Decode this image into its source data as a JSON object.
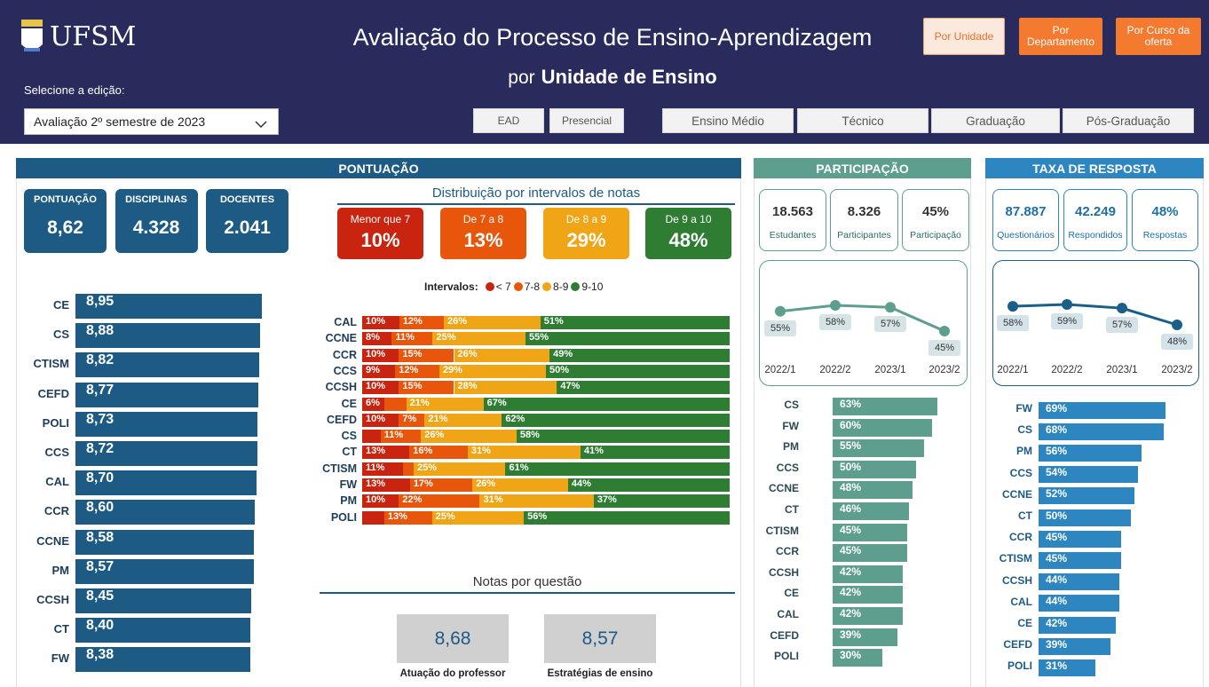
{
  "header": {
    "logo": "UFSM",
    "title": "Avaliação do Processo de Ensino-Aprendizagem",
    "subtitle_prefix": "por",
    "subtitle_main": "Unidade de Ensino",
    "edition_label": "Selecione a edição:",
    "edition_value": "Avaliação 2º semestre de 2023",
    "nav_buttons": [
      "Por Unidade",
      "Por Departamento",
      "Por Curso da oferta"
    ],
    "filters": [
      "EAD",
      "Presencial",
      "Ensino Médio",
      "Técnico",
      "Graduação",
      "Pós-Graduação"
    ]
  },
  "pontuacao": {
    "title": "PONTUAÇÃO",
    "kpis": [
      {
        "label": "PONTUAÇÃO",
        "value": "8,62"
      },
      {
        "label": "DISCIPLINAS",
        "value": "4.328"
      },
      {
        "label": "DOCENTES",
        "value": "2.041"
      }
    ],
    "distribution": {
      "title": "Distribuição por intervalos de notas",
      "buckets": [
        {
          "label": "Menor que 7",
          "value": "10%"
        },
        {
          "label": "De 7 a 8",
          "value": "13%"
        },
        {
          "label": "De 8 a 9",
          "value": "29%"
        },
        {
          "label": "De 9 a 10",
          "value": "48%"
        }
      ]
    },
    "questions": {
      "title": "Notas por questão",
      "items": [
        {
          "value": "8,68",
          "label": "Atuação do professor"
        },
        {
          "value": "8,57",
          "label": "Estratégias de ensino"
        }
      ]
    }
  },
  "participacao": {
    "title": "PARTICIPAÇÃO",
    "kpis": [
      {
        "value": "18.563",
        "label": "Estudantes"
      },
      {
        "value": "8.326",
        "label": "Participantes"
      },
      {
        "value": "45%",
        "label": "Participação"
      }
    ]
  },
  "taxa": {
    "title": "TAXA DE RESPOSTA",
    "kpis": [
      {
        "value": "87.887",
        "label": "Questionários"
      },
      {
        "value": "42.249",
        "label": "Respondidos"
      },
      {
        "value": "48%",
        "label": "Respostas"
      }
    ]
  },
  "chart_data": [
    {
      "type": "hbar",
      "color": "#1d5b84",
      "categories": [
        "CE",
        "CS",
        "CTISM",
        "CEFD",
        "POLI",
        "CCS",
        "CAL",
        "CCR",
        "CCNE",
        "PM",
        "CCSH",
        "CT",
        "FW"
      ],
      "values": [
        8.95,
        8.88,
        8.82,
        8.77,
        8.73,
        8.72,
        8.7,
        8.6,
        8.58,
        8.57,
        8.45,
        8.4,
        8.38
      ],
      "value_labels": [
        "8,95",
        "8,88",
        "8,82",
        "8,77",
        "8,73",
        "8,72",
        "8,70",
        "8,60",
        "8,58",
        "8,57",
        "8,45",
        "8,40",
        "8,38"
      ]
    },
    {
      "type": "stacked_hbar",
      "legend_title": "Intervalos:",
      "categories": [
        "CAL",
        "CCNE",
        "CCR",
        "CCS",
        "CCSH",
        "CE",
        "CEFD",
        "CS",
        "CT",
        "CTISM",
        "FW",
        "PM",
        "POLI"
      ],
      "series": [
        {
          "name": "< 7",
          "color": "#c8240f",
          "values": [
            10,
            8,
            10,
            9,
            10,
            6,
            10,
            5,
            13,
            11,
            13,
            10,
            6
          ],
          "value_labels": [
            "10%",
            "8%",
            "10%",
            "9%",
            "10%",
            "6%",
            "10%",
            null,
            "13%",
            "11%",
            "13%",
            "10%",
            null
          ]
        },
        {
          "name": "7-8",
          "color": "#e8560c",
          "values": [
            12,
            11,
            15,
            12,
            15,
            6,
            7,
            11,
            16,
            3,
            17,
            22,
            13
          ],
          "value_labels": [
            "12%",
            "11%",
            "15%",
            "12%",
            "15%",
            null,
            "7%",
            "11%",
            "16%",
            null,
            "17%",
            "22%",
            "13%"
          ]
        },
        {
          "name": "8-9",
          "color": "#f0a516",
          "values": [
            26,
            25,
            26,
            29,
            28,
            21,
            21,
            26,
            31,
            25,
            26,
            31,
            25
          ],
          "value_labels": [
            "26%",
            "25%",
            "26%",
            "29%",
            "28%",
            "21%",
            "21%",
            "26%",
            "31%",
            "25%",
            "26%",
            "31%",
            "25%"
          ]
        },
        {
          "name": "9-10",
          "color": "#2e7d32",
          "values": [
            51,
            55,
            49,
            50,
            47,
            67,
            62,
            58,
            41,
            61,
            44,
            37,
            56
          ],
          "value_labels": [
            "51%",
            "55%",
            "49%",
            "50%",
            "47%",
            "67%",
            "62%",
            "58%",
            "41%",
            "61%",
            "44%",
            "37%",
            "56%"
          ]
        }
      ]
    },
    {
      "type": "line",
      "color": "#5e9e8e",
      "x": [
        "2022/1",
        "2022/2",
        "2023/1",
        "2023/2"
      ],
      "values": [
        55,
        58,
        57,
        45
      ],
      "value_labels": [
        "55%",
        "58%",
        "57%",
        "45%"
      ]
    },
    {
      "type": "hbar",
      "color": "#5e9e8e",
      "categories": [
        "CS",
        "FW",
        "PM",
        "CCS",
        "CCNE",
        "CT",
        "CTISM",
        "CCR",
        "CCSH",
        "CE",
        "CAL",
        "CEFD",
        "POLI"
      ],
      "values": [
        63,
        60,
        55,
        50,
        48,
        46,
        45,
        45,
        42,
        42,
        42,
        39,
        30
      ],
      "value_labels": [
        "63%",
        "60%",
        "55%",
        "50%",
        "48%",
        "46%",
        "45%",
        "45%",
        "42%",
        "42%",
        "42%",
        "39%",
        "30%"
      ]
    },
    {
      "type": "line",
      "color": "#1a5f8a",
      "x": [
        "2022/1",
        "2022/2",
        "2023/1",
        "2023/2"
      ],
      "values": [
        58,
        59,
        57,
        48
      ],
      "value_labels": [
        "58%",
        "59%",
        "57%",
        "48%"
      ]
    },
    {
      "type": "hbar",
      "color": "#2e86c1",
      "categories": [
        "FW",
        "CS",
        "PM",
        "CCS",
        "CCNE",
        "CT",
        "CCR",
        "CTISM",
        "CCSH",
        "CAL",
        "CE",
        "CEFD",
        "POLI"
      ],
      "values": [
        69,
        68,
        56,
        54,
        52,
        50,
        45,
        45,
        44,
        44,
        42,
        39,
        31
      ],
      "value_labels": [
        "69%",
        "68%",
        "56%",
        "54%",
        "52%",
        "50%",
        "45%",
        "45%",
        "44%",
        "44%",
        "42%",
        "39%",
        "31%"
      ]
    }
  ]
}
